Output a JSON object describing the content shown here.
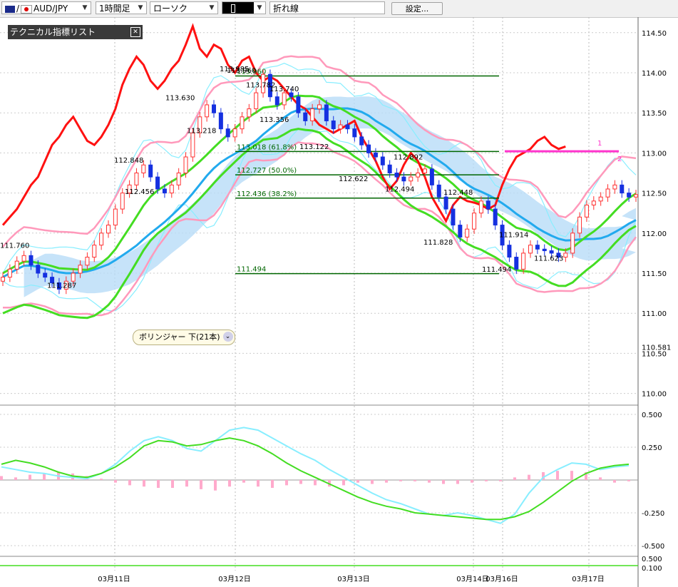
{
  "toolbar": {
    "symbol": "AUD/JPY",
    "timeframe": "1時間足",
    "chart_type": "ローソク",
    "line_style": "折れ線",
    "settings_label": "設定..."
  },
  "indicator_panel": {
    "title": "テクニカル指標リスト",
    "close_glyph": "✕"
  },
  "tooltip": {
    "text": "ボリンジャー 下(21本)",
    "chevron": "⌄"
  },
  "colors": {
    "up_candle": "#ff3030",
    "down_candle": "#1530e0",
    "bb_outer": "#88eeff",
    "bb_inner": "#ff99bb",
    "ma_fast": "#22aaee",
    "ma_slow": "#44dd22",
    "red_line": "#ff1111",
    "magenta": "#ff33cc",
    "cloud": "#b8dcf8",
    "cloud2": "#ffccdd",
    "fib": "#006600"
  },
  "chart_data": [
    {
      "type": "candlestick",
      "title": "",
      "xlabel": "",
      "ylabel": "",
      "ylim": [
        109.9,
        114.58
      ],
      "grid": true,
      "y_ticks": [
        "114.50",
        "114.00",
        "113.50",
        "113.00",
        "112.50",
        "112.00",
        "111.50",
        "111.00",
        "110.50",
        "110.00"
      ],
      "x_ticks": [
        "03月11日",
        "03月12日",
        "03月13日",
        "03月14日",
        "03月16日",
        "03月17日"
      ],
      "current_price_label": "110.581",
      "annotations": [
        "111.760",
        "111.287",
        "112.848",
        "112.456",
        "113.630",
        "113.218",
        "113.960",
        "113.985",
        "113.782",
        "113.740",
        "113.356",
        "113.018 (61.8%)",
        "113.122",
        "112.727 (50.0%)",
        "112.436 (38.2%)",
        "111.494",
        "112.892",
        "112.622",
        "112.494",
        "112.448",
        "111.828",
        "111.914",
        "111.623",
        "111.494"
      ],
      "fib_levels": [
        {
          "label": "113.960",
          "value": 113.96
        },
        {
          "label": "113.018 (61.8%)",
          "value": 113.018
        },
        {
          "label": "112.727 (50.0%)",
          "value": 112.727
        },
        {
          "label": "112.436 (38.2%)",
          "value": 112.436
        },
        {
          "label": "111.494",
          "value": 111.494
        }
      ],
      "markers": [
        "1",
        "2"
      ],
      "close_series": [
        111.45,
        111.55,
        111.65,
        111.72,
        111.6,
        111.5,
        111.45,
        111.38,
        111.3,
        111.4,
        111.5,
        111.6,
        111.7,
        111.85,
        112.0,
        112.1,
        112.3,
        112.5,
        112.6,
        112.75,
        112.85,
        112.7,
        112.55,
        112.5,
        112.6,
        112.75,
        112.95,
        113.25,
        113.45,
        113.6,
        113.5,
        113.3,
        113.2,
        113.3,
        113.45,
        113.55,
        113.75,
        113.98,
        113.7,
        113.6,
        113.75,
        113.7,
        113.5,
        113.4,
        113.55,
        113.6,
        113.4,
        113.3,
        113.35,
        113.3,
        113.2,
        113.1,
        113.0,
        112.95,
        112.85,
        112.75,
        112.7,
        112.65,
        112.7,
        112.75,
        112.8,
        112.6,
        112.45,
        112.3,
        112.1,
        111.95,
        112.05,
        112.25,
        112.4,
        112.3,
        112.1,
        111.85,
        111.7,
        111.55,
        111.75,
        111.85,
        111.8,
        111.78,
        111.75,
        111.7,
        111.75,
        112.0,
        112.2,
        112.35,
        112.4,
        112.45,
        112.55,
        112.6,
        112.5,
        112.45,
        112.48
      ]
    },
    {
      "type": "line",
      "title": "",
      "ylim": [
        -0.55,
        0.55
      ],
      "y_ticks": [
        "0.500",
        "0.250",
        "-0.250",
        "-0.500"
      ],
      "series": [
        {
          "values": [
            0.1,
            0.08,
            0.06,
            0.05,
            0.03,
            0.02,
            0.01,
            0.05,
            0.12,
            0.22,
            0.3,
            0.33,
            0.3,
            0.24,
            0.22,
            0.3,
            0.38,
            0.4,
            0.38,
            0.32,
            0.26,
            0.2,
            0.15,
            0.08,
            0.02,
            -0.04,
            -0.1,
            -0.15,
            -0.18,
            -0.22,
            -0.26,
            -0.27,
            -0.25,
            -0.27,
            -0.3,
            -0.33,
            -0.26,
            -0.1,
            0.02,
            0.08,
            0.13,
            0.12,
            0.08,
            0.1,
            0.11
          ]
        },
        {
          "values": [
            0.12,
            0.15,
            0.13,
            0.1,
            0.06,
            0.03,
            0.02,
            0.05,
            0.1,
            0.17,
            0.26,
            0.3,
            0.29,
            0.26,
            0.27,
            0.3,
            0.32,
            0.3,
            0.26,
            0.2,
            0.13,
            0.07,
            0.02,
            -0.03,
            -0.08,
            -0.13,
            -0.17,
            -0.2,
            -0.22,
            -0.25,
            -0.26,
            -0.27,
            -0.28,
            -0.29,
            -0.3,
            -0.3,
            -0.28,
            -0.24,
            -0.17,
            -0.09,
            -0.01,
            0.05,
            0.09,
            0.11,
            0.12
          ]
        }
      ],
      "histogram": [
        0.03,
        0.02,
        0.04,
        0.05,
        0.06,
        0.05,
        0.03,
        0.01,
        -0.02,
        -0.04,
        -0.05,
        -0.06,
        -0.06,
        -0.05,
        -0.07,
        -0.08,
        -0.05,
        -0.02,
        -0.05,
        -0.06,
        -0.04,
        -0.03,
        -0.04,
        -0.05,
        -0.04,
        -0.02,
        -0.03,
        -0.02,
        -0.01,
        -0.01,
        -0.02,
        -0.03,
        -0.03,
        -0.02,
        -0.01,
        -0.01,
        0.02,
        0.04,
        0.06,
        0.07,
        0.07,
        0.06,
        0.02,
        -0.02,
        -0.01
      ]
    },
    {
      "type": "line",
      "title": "",
      "y_ticks": [
        "0.500",
        "0.100"
      ],
      "series": [
        {
          "values": [
            0.1,
            0.1,
            0.1,
            0.1,
            0.1
          ]
        }
      ]
    }
  ]
}
